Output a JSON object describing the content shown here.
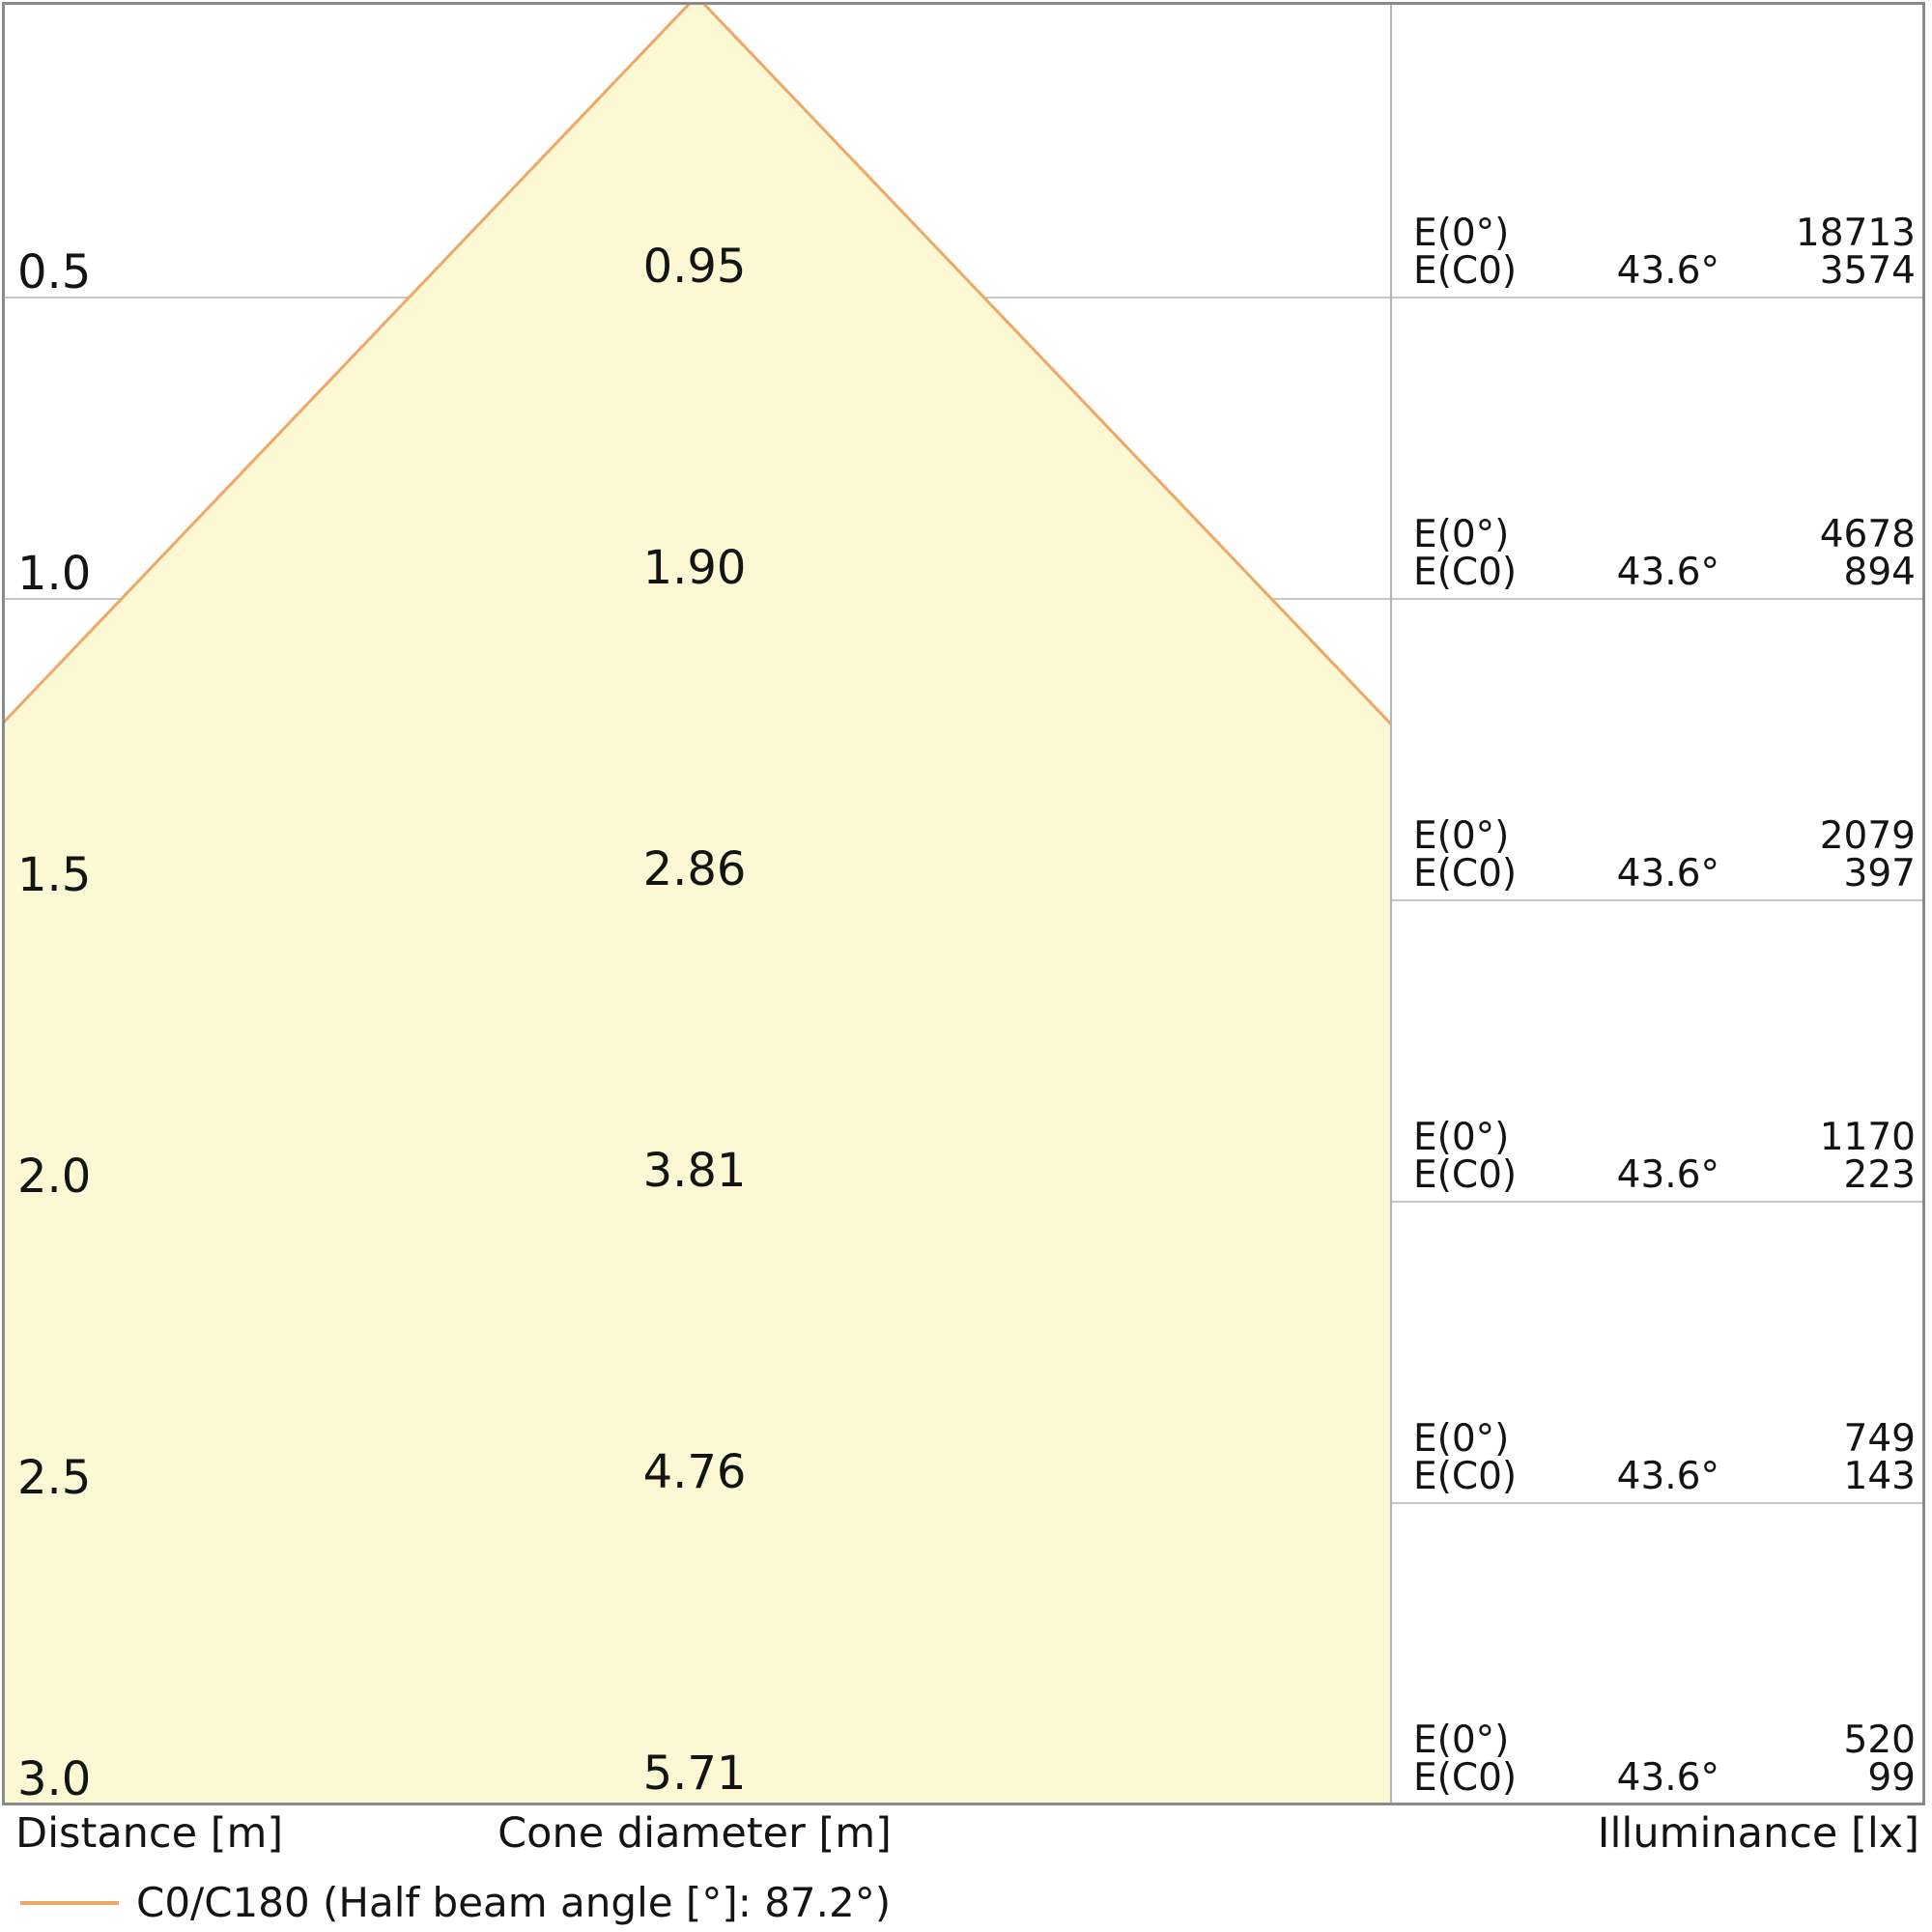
{
  "chart_data": {
    "type": "area",
    "subtype": "light-cone-diagram",
    "y_axis_label": "Distance [m]",
    "x_axis_label": "Cone diameter [m]",
    "value_axis_label": "Illuminance [lx]",
    "legend_label": "C0/C180 (Half beam angle [°]: 87.2°)",
    "half_beam_angle_deg": 87.2,
    "beam_half_angle_per_side_deg": 43.6,
    "distance_range_m": [
      0,
      3.0
    ],
    "equal_scale": true,
    "grid": true,
    "legend_position": "bottom-left",
    "rows": [
      {
        "distance": "0.5",
        "distance_m": 0.5,
        "diameter": "0.95",
        "cone_diameter_m": 0.95,
        "e0_label": "E(0°)",
        "ec0_label": "E(C0)",
        "angle": "43.6°",
        "e0_value": "18713",
        "E0_lx": 18713,
        "ec0_value": "3574",
        "EC0_lx": 3574
      },
      {
        "distance": "1.0",
        "distance_m": 1.0,
        "diameter": "1.90",
        "cone_diameter_m": 1.9,
        "e0_label": "E(0°)",
        "ec0_label": "E(C0)",
        "angle": "43.6°",
        "e0_value": "4678",
        "E0_lx": 4678,
        "ec0_value": "894",
        "EC0_lx": 894
      },
      {
        "distance": "1.5",
        "distance_m": 1.5,
        "diameter": "2.86",
        "cone_diameter_m": 2.86,
        "e0_label": "E(0°)",
        "ec0_label": "E(C0)",
        "angle": "43.6°",
        "e0_value": "2079",
        "E0_lx": 2079,
        "ec0_value": "397",
        "EC0_lx": 397
      },
      {
        "distance": "2.0",
        "distance_m": 2.0,
        "diameter": "3.81",
        "cone_diameter_m": 3.81,
        "e0_label": "E(0°)",
        "ec0_label": "E(C0)",
        "angle": "43.6°",
        "e0_value": "1170",
        "E0_lx": 1170,
        "ec0_value": "223",
        "EC0_lx": 223
      },
      {
        "distance": "2.5",
        "distance_m": 2.5,
        "diameter": "4.76",
        "cone_diameter_m": 4.76,
        "e0_label": "E(0°)",
        "ec0_label": "E(C0)",
        "angle": "43.6°",
        "e0_value": "749",
        "E0_lx": 749,
        "ec0_value": "143",
        "EC0_lx": 143
      },
      {
        "distance": "3.0",
        "distance_m": 3.0,
        "diameter": "5.71",
        "cone_diameter_m": 5.71,
        "e0_label": "E(0°)",
        "ec0_label": "E(C0)",
        "angle": "43.6°",
        "e0_value": "520",
        "E0_lx": 520,
        "ec0_value": "99",
        "EC0_lx": 99
      }
    ],
    "footer": {
      "distance": "Distance [m]",
      "cone_diameter": "Cone diameter [m]",
      "illuminance": "Illuminance [lx]"
    },
    "colors": {
      "background": "#FFFFFF",
      "cone_fill": "#FCF8D3",
      "cone_line": "#F0A765",
      "grid": "#C8C8C8",
      "separator": "#B3B3B3",
      "border": "#8A8A8A",
      "text": "#141414"
    }
  }
}
